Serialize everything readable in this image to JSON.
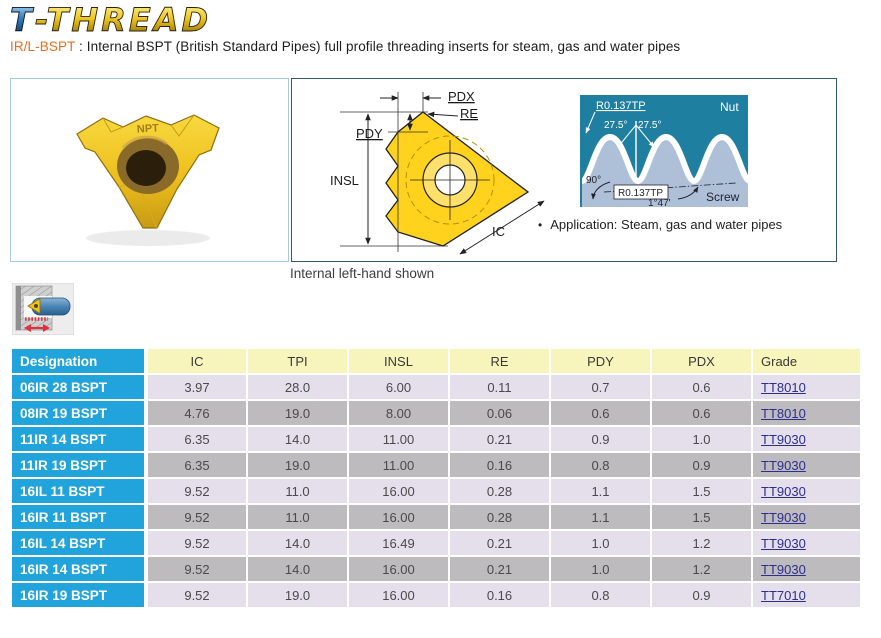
{
  "logo": {
    "t": "T",
    "thread": "-THREAD"
  },
  "subtitle": {
    "code": "IR/L-BSPT",
    "sep": " : ",
    "text": "Internal BSPT (British Standard Pipes) full profile threading inserts for steam, gas and water pipes"
  },
  "photo": {
    "marking": "NPT"
  },
  "diagram": {
    "pdx": "PDX",
    "re": "RE",
    "pdy": "PDY",
    "insl": "INSL",
    "ic": "IC"
  },
  "profile": {
    "radius_top": "R0.137TP",
    "nut": "Nut",
    "angle_left": "27.5°",
    "angle_right": "27.5°",
    "right_angle": "90°",
    "radius_bottom": "R0.137TP",
    "taper_angle": "1°47'",
    "screw": "Screw"
  },
  "application": {
    "bullet": "•",
    "text": "Application: Steam, gas and water pipes"
  },
  "caption": "Internal left-hand shown",
  "table": {
    "headers": [
      "Designation",
      "IC",
      "TPI",
      "INSL",
      "RE",
      "PDY",
      "PDX",
      "Grade"
    ],
    "rows": [
      [
        "06IR 28 BSPT",
        "3.97",
        "28.0",
        "6.00",
        "0.11",
        "0.7",
        "0.6",
        "TT8010"
      ],
      [
        "08IR 19 BSPT",
        "4.76",
        "19.0",
        "8.00",
        "0.06",
        "0.6",
        "0.6",
        "TT8010"
      ],
      [
        "11IR 14 BSPT",
        "6.35",
        "14.0",
        "11.00",
        "0.21",
        "0.9",
        "1.0",
        "TT9030"
      ],
      [
        "11IR 19 BSPT",
        "6.35",
        "19.0",
        "11.00",
        "0.16",
        "0.8",
        "0.9",
        "TT9030"
      ],
      [
        "16IL 11 BSPT",
        "9.52",
        "11.0",
        "16.00",
        "0.28",
        "1.1",
        "1.5",
        "TT9030"
      ],
      [
        "16IR 11 BSPT",
        "9.52",
        "11.0",
        "16.00",
        "0.28",
        "1.1",
        "1.5",
        "TT9030"
      ],
      [
        "16IL 14 BSPT",
        "9.52",
        "14.0",
        "16.49",
        "0.21",
        "1.0",
        "1.2",
        "TT9030"
      ],
      [
        "16IR 14 BSPT",
        "9.52",
        "14.0",
        "16.00",
        "0.21",
        "1.0",
        "1.2",
        "TT9030"
      ],
      [
        "16IR 19 BSPT",
        "9.52",
        "19.0",
        "16.00",
        "0.16",
        "0.8",
        "0.9",
        "TT7010"
      ]
    ]
  },
  "colors": {
    "accent_blue": "#21A3DB",
    "header_yellow": "#F7F4BC",
    "row_light": "#E5DEEB",
    "row_dark": "#BDBBBD",
    "link_navy": "#2D2F8F",
    "code_orange": "#ED6C1E",
    "nut_teal": "#1F7FA0",
    "screw_steel": "#AEC0D8",
    "insert_gold": "#F2C81F"
  }
}
